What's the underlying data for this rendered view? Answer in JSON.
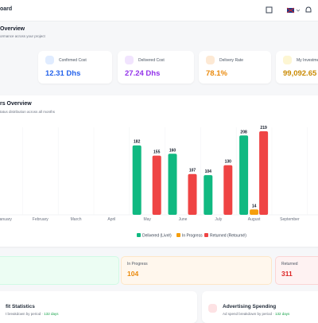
{
  "header": {
    "title": "oard"
  },
  "overview": {
    "title": "Overview",
    "subtitle": "ormance across your project"
  },
  "kpis": [
    {
      "label": "Confirmed Cost",
      "value": "12.31 Dhs"
    },
    {
      "label": "Delivered Cost",
      "value": "27.24 Dhs"
    },
    {
      "label": "Delivery Rate",
      "value": "78.1%"
    },
    {
      "label": "My Investme",
      "value": "99,092.65 Dh"
    }
  ],
  "chart_data": {
    "type": "bar",
    "title": "rs Overview",
    "subtitle": "tatus distribution across all months",
    "categories": [
      "January",
      "February",
      "March",
      "April",
      "May",
      "June",
      "July",
      "August",
      "September"
    ],
    "series": [
      {
        "name": "Delivered (Livré)",
        "color": "#10b981",
        "values": [
          null,
          null,
          null,
          null,
          182,
          160,
          104,
          208,
          null
        ]
      },
      {
        "name": "In Progress",
        "color": "#f59e0b",
        "values": [
          null,
          null,
          null,
          null,
          null,
          null,
          null,
          14,
          null
        ]
      },
      {
        "name": "Returned (Retourné)",
        "color": "#ef4444",
        "values": [
          null,
          null,
          null,
          null,
          155,
          107,
          130,
          219,
          null
        ]
      }
    ]
  },
  "status_cards": [
    {
      "label": "In Progress",
      "value": 104
    },
    {
      "label": "Returned",
      "value": 311
    }
  ],
  "bottom": [
    {
      "title": "fit Statistics",
      "subtitle": "t breakdown by period · ",
      "days": "132 days"
    },
    {
      "title": "Advertising Spending",
      "subtitle": "Ad spend breakdown by period · ",
      "days": "132 days"
    }
  ]
}
